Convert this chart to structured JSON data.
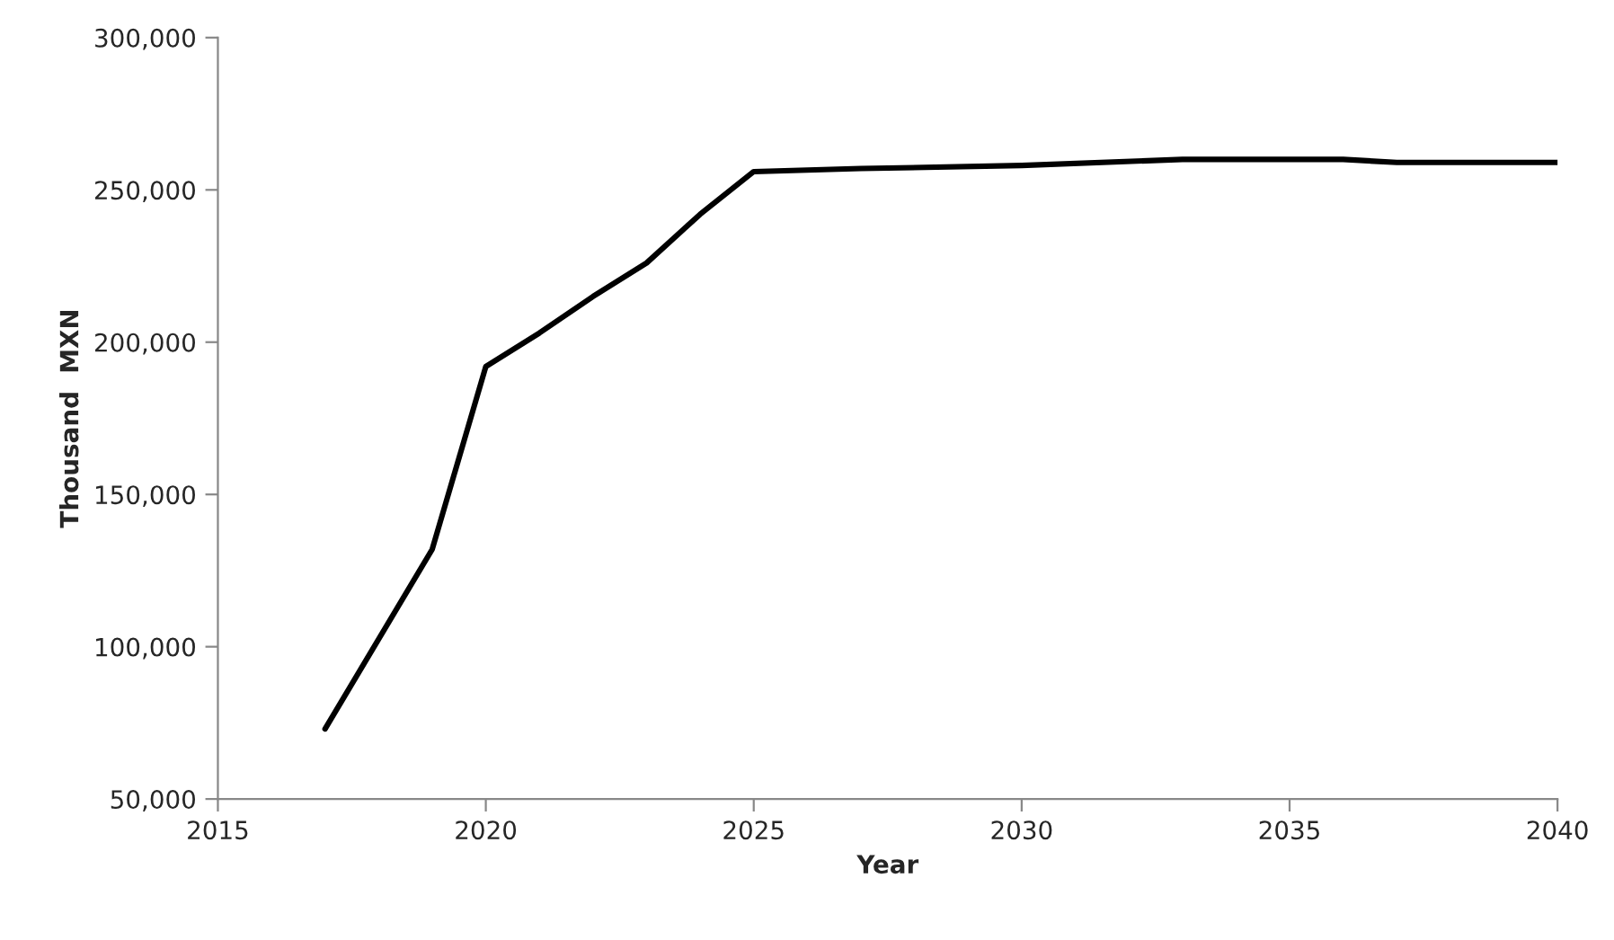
{
  "chart_data": {
    "type": "line",
    "xlabel": "Year",
    "ylabel": "Thousand  MXN",
    "x": [
      2017,
      2019,
      2020,
      2021,
      2022,
      2023,
      2024,
      2025,
      2027,
      2030,
      2033,
      2036,
      2037,
      2040
    ],
    "series": [
      {
        "color": "#000000",
        "values": [
          73000,
          132000,
          192000,
          203000,
          215000,
          226000,
          242000,
          256000,
          257000,
          258000,
          260000,
          260000,
          259000,
          259000
        ]
      }
    ],
    "xlim": [
      2015,
      2040
    ],
    "xticks": [
      2015,
      2020,
      2025,
      2030,
      2035,
      2040
    ],
    "ylim": [
      50000,
      300000
    ],
    "yticks": [
      {
        "value": 50000,
        "label": "50,000"
      },
      {
        "value": 100000,
        "label": "100,000"
      },
      {
        "value": 150000,
        "label": "150,000"
      },
      {
        "value": 200000,
        "label": "200,000"
      },
      {
        "value": 250000,
        "label": "250,000"
      },
      {
        "value": 300000,
        "label": "300,000"
      }
    ],
    "grid": false,
    "legend": false,
    "marker": "none",
    "line_style": "solid"
  }
}
